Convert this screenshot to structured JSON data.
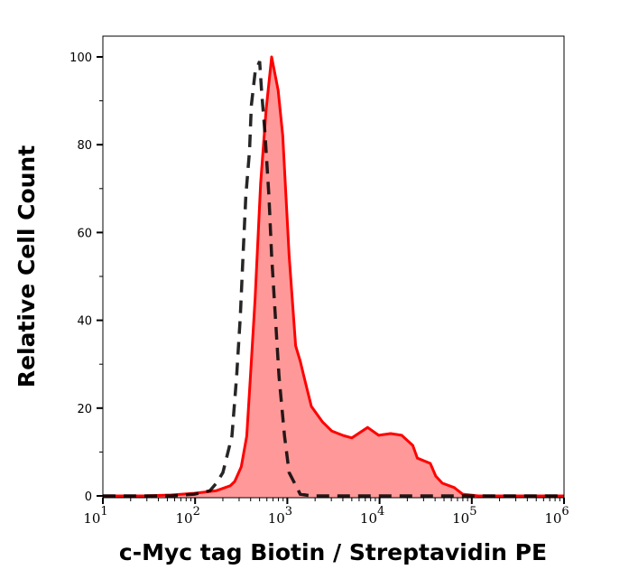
{
  "chart_data": {
    "type": "area",
    "title": "",
    "xlabel": "c-Myc tag Biotin / Streptavidin PE",
    "ylabel": "Relative Cell Count",
    "x_scale": "log",
    "xlim": [
      10,
      1000000
    ],
    "ylim": [
      0,
      105
    ],
    "x_ticks": [
      {
        "base": "10",
        "exp": "1"
      },
      {
        "base": "10",
        "exp": "2"
      },
      {
        "base": "10",
        "exp": "3"
      },
      {
        "base": "10",
        "exp": "4"
      },
      {
        "base": "10",
        "exp": "5"
      },
      {
        "base": "10",
        "exp": "6"
      }
    ],
    "y_ticks": [
      "0",
      "20",
      "40",
      "60",
      "80",
      "100"
    ],
    "grid": false,
    "series": [
      {
        "style": "filled solid",
        "color": "#ff0000",
        "fill": "#ff9999",
        "x": [
          10,
          28,
          55,
          98,
          170,
          240,
          269,
          316,
          363,
          398,
          447,
          513,
          589,
          676,
          794,
          891,
          1047,
          1230,
          1380,
          1514,
          1820,
          2399,
          3020,
          3981,
          5012,
          7413,
          9772,
          13183,
          17378,
          22909,
          25704,
          35481,
          40738,
          47863,
          64565,
          79433,
          117490,
          1000000
        ],
        "y": [
          0,
          0,
          0.2,
          0.6,
          1.2,
          2.3,
          3.3,
          6.6,
          13.6,
          27.2,
          45,
          71.2,
          88,
          100,
          92.4,
          82.1,
          54.7,
          34.2,
          30.7,
          27.2,
          20.4,
          16.9,
          14.8,
          13.8,
          13.2,
          15.6,
          13.8,
          14.2,
          13.8,
          11.5,
          8.6,
          7.4,
          4.5,
          2.9,
          1.9,
          0.4,
          0,
          0
        ]
      },
      {
        "style": "dashed",
        "color": "#000000",
        "x": [
          10,
          55,
          98,
          123,
          145,
          170,
          200,
          251,
          282,
          309,
          331,
          355,
          389,
          407,
          447,
          501,
          525,
          575,
          631,
          676,
          741,
          813,
          933,
          1047,
          1380,
          1820,
          1000000
        ],
        "y": [
          0,
          0,
          0.4,
          0.8,
          1.2,
          2.9,
          5.3,
          13.6,
          27.2,
          40.9,
          54.7,
          68.3,
          78.6,
          88.9,
          96.5,
          99,
          92.4,
          82.1,
          68.3,
          54.7,
          40.9,
          27.2,
          13.6,
          5.3,
          0.4,
          0,
          0
        ]
      }
    ]
  }
}
